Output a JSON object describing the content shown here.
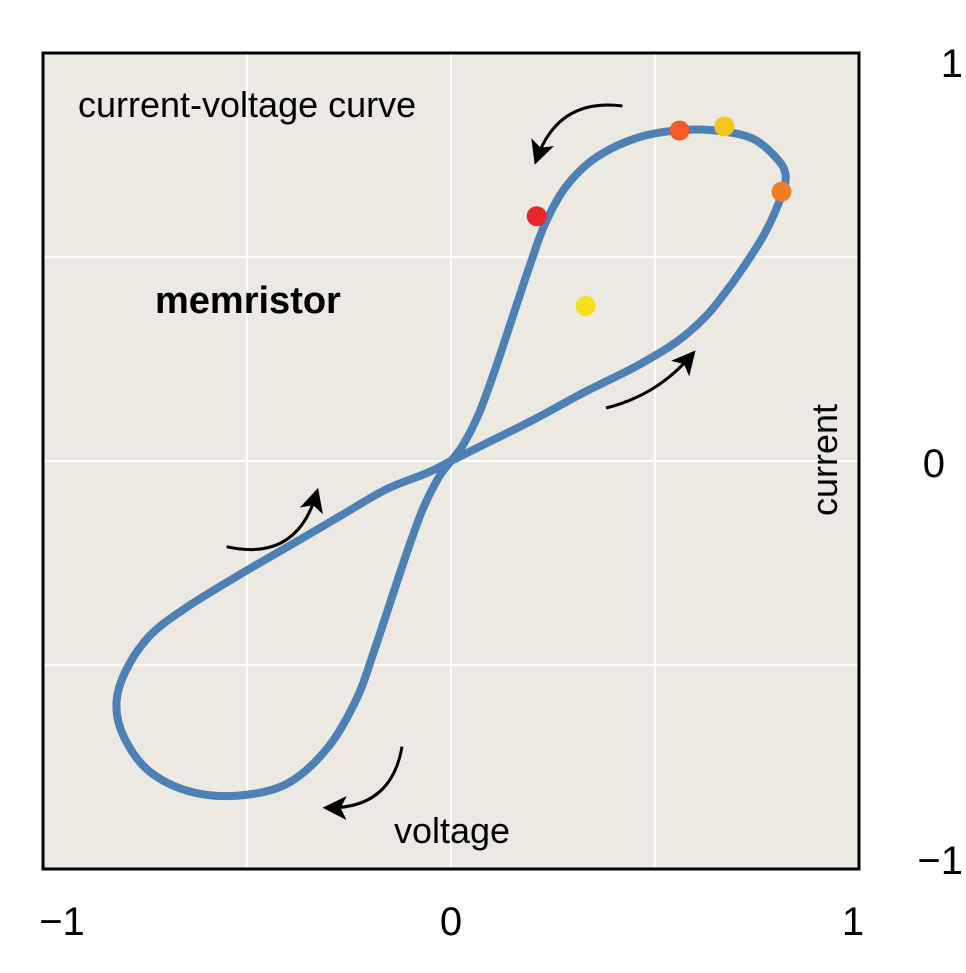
{
  "chart_data": {
    "type": "line",
    "title": "current-voltage curve",
    "annotation": "memristor",
    "xlabel": "voltage",
    "ylabel": "current",
    "xlim": [
      -1,
      1
    ],
    "ylim": [
      -1,
      1
    ],
    "grid": true,
    "x_ticks": [
      -1,
      -0.5,
      0,
      0.5,
      1
    ],
    "y_ticks": [
      -1,
      -0.5,
      0,
      0.5,
      1
    ],
    "x_tick_labels": [
      "−1",
      "0",
      "1"
    ],
    "y_tick_labels": [
      "1",
      "0",
      "−1"
    ],
    "series": [
      {
        "x": [
          0,
          0.1,
          0.2,
          0.33,
          0.45,
          0.55,
          0.62,
          0.67,
          0.72,
          0.77,
          0.81,
          0.82,
          0.8,
          0.74,
          0.65,
          0.55,
          0.45,
          0.35,
          0.28,
          0.23,
          0.19,
          0.15,
          0.11,
          0.07,
          0.03,
          0,
          -0.03,
          -0.07,
          -0.11,
          -0.15,
          -0.19,
          -0.23,
          -0.3,
          -0.4,
          -0.52,
          -0.64,
          -0.74,
          -0.8,
          -0.82,
          -0.8,
          -0.74,
          -0.65,
          -0.52,
          -0.4,
          -0.28,
          -0.16,
          -0.06,
          0
        ],
        "y": [
          0,
          0.05,
          0.1,
          0.17,
          0.23,
          0.29,
          0.35,
          0.41,
          0.48,
          0.56,
          0.65,
          0.7,
          0.74,
          0.79,
          0.81,
          0.81,
          0.79,
          0.74,
          0.67,
          0.58,
          0.47,
          0.35,
          0.23,
          0.12,
          0.04,
          0,
          -0.04,
          -0.12,
          -0.23,
          -0.35,
          -0.47,
          -0.58,
          -0.7,
          -0.79,
          -0.82,
          -0.81,
          -0.76,
          -0.68,
          -0.6,
          -0.52,
          -0.43,
          -0.36,
          -0.28,
          -0.21,
          -0.14,
          -0.07,
          -0.03,
          0
        ]
      }
    ],
    "highlight_points": [
      {
        "x": 0.33,
        "y": 0.38,
        "color": "#f7e01a"
      },
      {
        "x": 0.67,
        "y": 0.82,
        "color": "#f5c518"
      },
      {
        "x": 0.81,
        "y": 0.66,
        "color": "#f07d24"
      },
      {
        "x": 0.56,
        "y": 0.81,
        "color": "#f25a28"
      },
      {
        "x": 0.21,
        "y": 0.6,
        "color": "#e8262b"
      }
    ],
    "direction_arrows": [
      {
        "from": [
          -0.55,
          -0.21
        ],
        "to": [
          -0.33,
          -0.08
        ],
        "curve": 0.06
      },
      {
        "from": [
          0.38,
          0.13
        ],
        "to": [
          0.59,
          0.26
        ],
        "curve": 0.02
      },
      {
        "from": [
          0.42,
          0.87
        ],
        "to": [
          0.21,
          0.74
        ],
        "curve": 0.05
      },
      {
        "from": [
          -0.12,
          -0.7
        ],
        "to": [
          -0.3,
          -0.85
        ],
        "curve": -0.05
      }
    ],
    "colors": {
      "plot_bg": "#ece9e3",
      "grid": "#ffffff",
      "frame": "#000000",
      "curve": "#4d80b4",
      "arrow": "#000000"
    }
  }
}
